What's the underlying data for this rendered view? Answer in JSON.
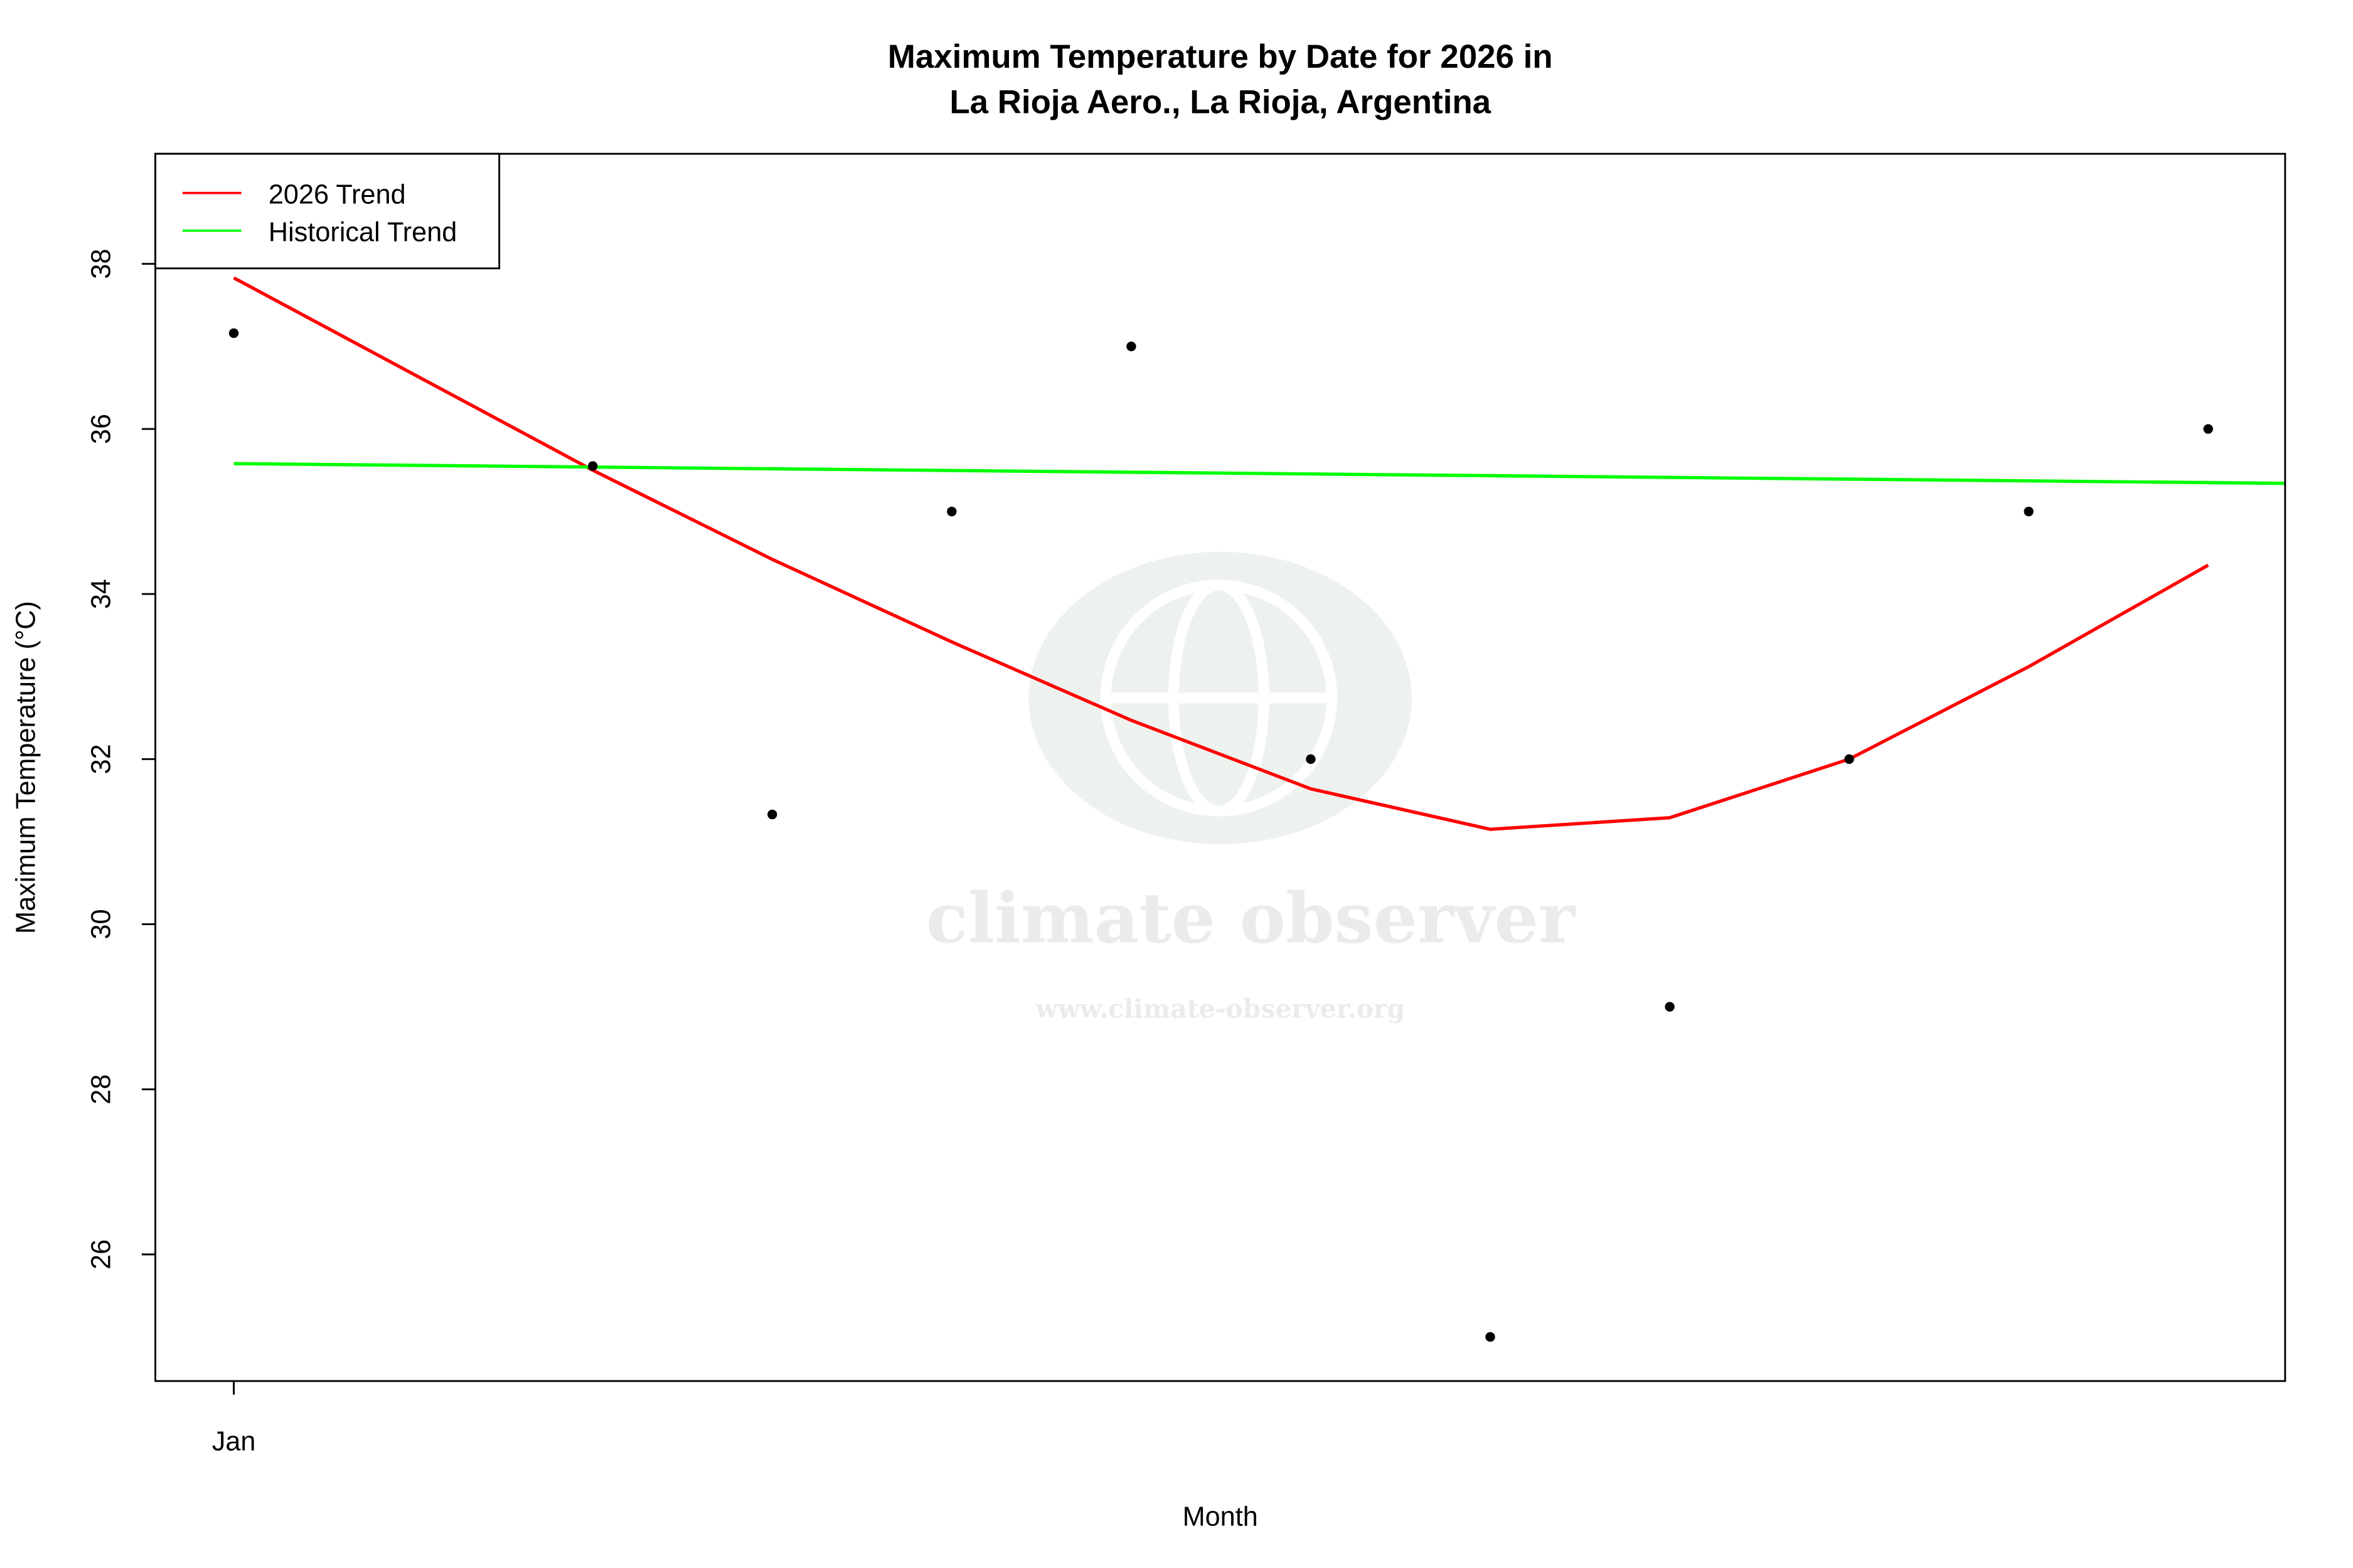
{
  "chart_data": {
    "type": "scatter",
    "title": "Maximum Temperature by Date for 2026 in",
    "subtitle": "La Rioja Aero., La Rioja, Argentina",
    "xlabel": "Month",
    "ylabel": "Maximum Temperature (°C)",
    "x_ticks": [
      {
        "x": "2026-01-01",
        "label": "Jan"
      }
    ],
    "y_ticks": [
      26,
      28,
      30,
      32,
      34,
      36,
      38
    ],
    "xlim": [
      "2025-12-31",
      "2026-01-12"
    ],
    "ylim": [
      24.5,
      39.3
    ],
    "grid": false,
    "legend_position": "top-left",
    "points": {
      "color": "#000000",
      "x": [
        "2026-01-01",
        "2026-01-03",
        "2026-01-04",
        "2026-01-05",
        "2026-01-06",
        "2026-01-07",
        "2026-01-08",
        "2026-01-09",
        "2026-01-10",
        "2026-01-11",
        "2026-01-12"
      ],
      "y": [
        37.16,
        35.55,
        31.33,
        35.0,
        37.0,
        32.0,
        25.0,
        29.0,
        32.0,
        35.0,
        36.0
      ]
    },
    "series": [
      {
        "name": "2026 Trend",
        "color": "#ff0000",
        "x": [
          "2026-01-01",
          "2026-01-03",
          "2026-01-04",
          "2026-01-05",
          "2026-01-06",
          "2026-01-07",
          "2026-01-08",
          "2026-01-09",
          "2026-01-10",
          "2026-01-11",
          "2026-01-12"
        ],
        "y": [
          37.83,
          35.5,
          34.42,
          33.42,
          32.47,
          31.64,
          31.15,
          31.29,
          32.0,
          33.12,
          34.35
        ]
      },
      {
        "name": "Historical Trend",
        "color": "#00ff00",
        "x": [
          "2026-01-01",
          "2026-01-12"
        ],
        "y": [
          35.58,
          35.35
        ]
      }
    ]
  },
  "watermark": {
    "name": "climate observer",
    "url": "www.climate-observer.org"
  }
}
